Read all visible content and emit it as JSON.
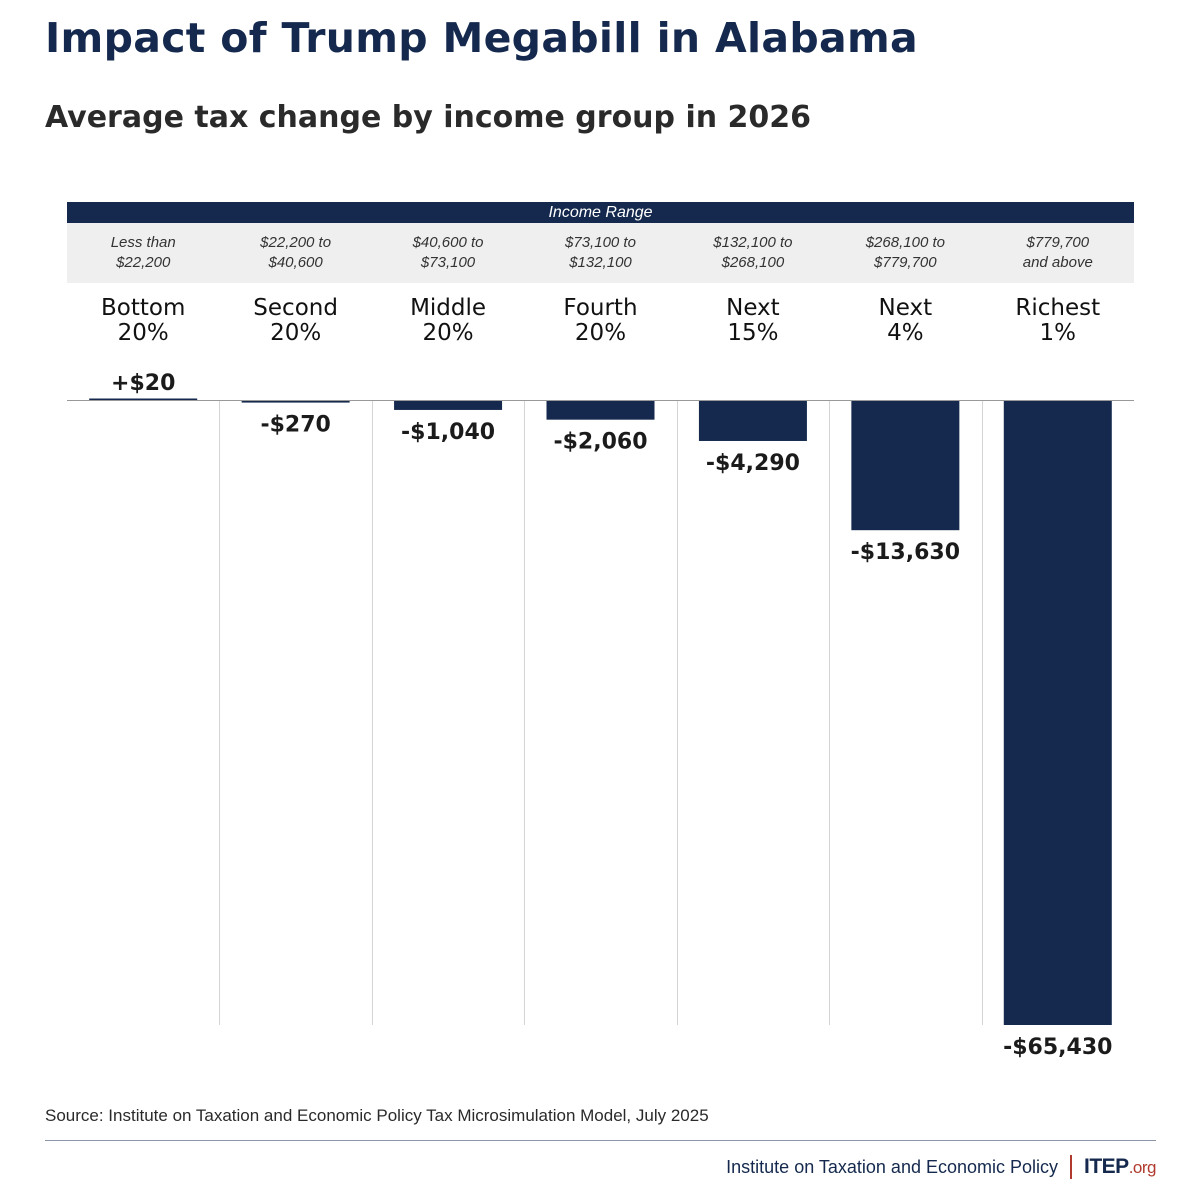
{
  "title": "Impact of Trump Megabill in Alabama",
  "subtitle": "Average tax change by income group in 2026",
  "range_header": "Income Range",
  "source": "Source: Institute on Taxation and Economic Policy Tax Microsimulation Model, July 2025",
  "footer": {
    "org": "Institute on Taxation and Economic Policy",
    "logo_main": "ITEP",
    "logo_suffix": ".org"
  },
  "colors": {
    "bar": "#14294d",
    "accent": "#b03a2e",
    "band_bg": "#efefef"
  },
  "chart_data": {
    "type": "bar",
    "title": "Impact of Trump Megabill in Alabama",
    "subtitle": "Average tax change by income group in 2026",
    "categories": [
      {
        "line1": "Bottom",
        "line2": "20%"
      },
      {
        "line1": "Second",
        "line2": "20%"
      },
      {
        "line1": "Middle",
        "line2": "20%"
      },
      {
        "line1": "Fourth",
        "line2": "20%"
      },
      {
        "line1": "Next",
        "line2": "15%"
      },
      {
        "line1": "Next",
        "line2": "4%"
      },
      {
        "line1": "Richest",
        "line2": "1%"
      }
    ],
    "income_ranges": [
      {
        "line1": "Less than",
        "line2": "$22,200"
      },
      {
        "line1": "$22,200 to",
        "line2": "$40,600"
      },
      {
        "line1": "$40,600 to",
        "line2": "$73,100"
      },
      {
        "line1": "$73,100 to",
        "line2": "$132,100"
      },
      {
        "line1": "$132,100 to",
        "line2": "$268,100"
      },
      {
        "line1": "$268,100 to",
        "line2": "$779,700"
      },
      {
        "line1": "$779,700",
        "line2": "and above"
      }
    ],
    "values": [
      20,
      -270,
      -1040,
      -2060,
      -4290,
      -13630,
      -65430
    ],
    "value_labels": [
      "+$20",
      "-$270",
      "-$1,040",
      "-$2,060",
      "-$4,290",
      "-$13,630",
      "-$65,430"
    ],
    "ylim": [
      -65430,
      0
    ],
    "grid": false,
    "legend": "none"
  }
}
